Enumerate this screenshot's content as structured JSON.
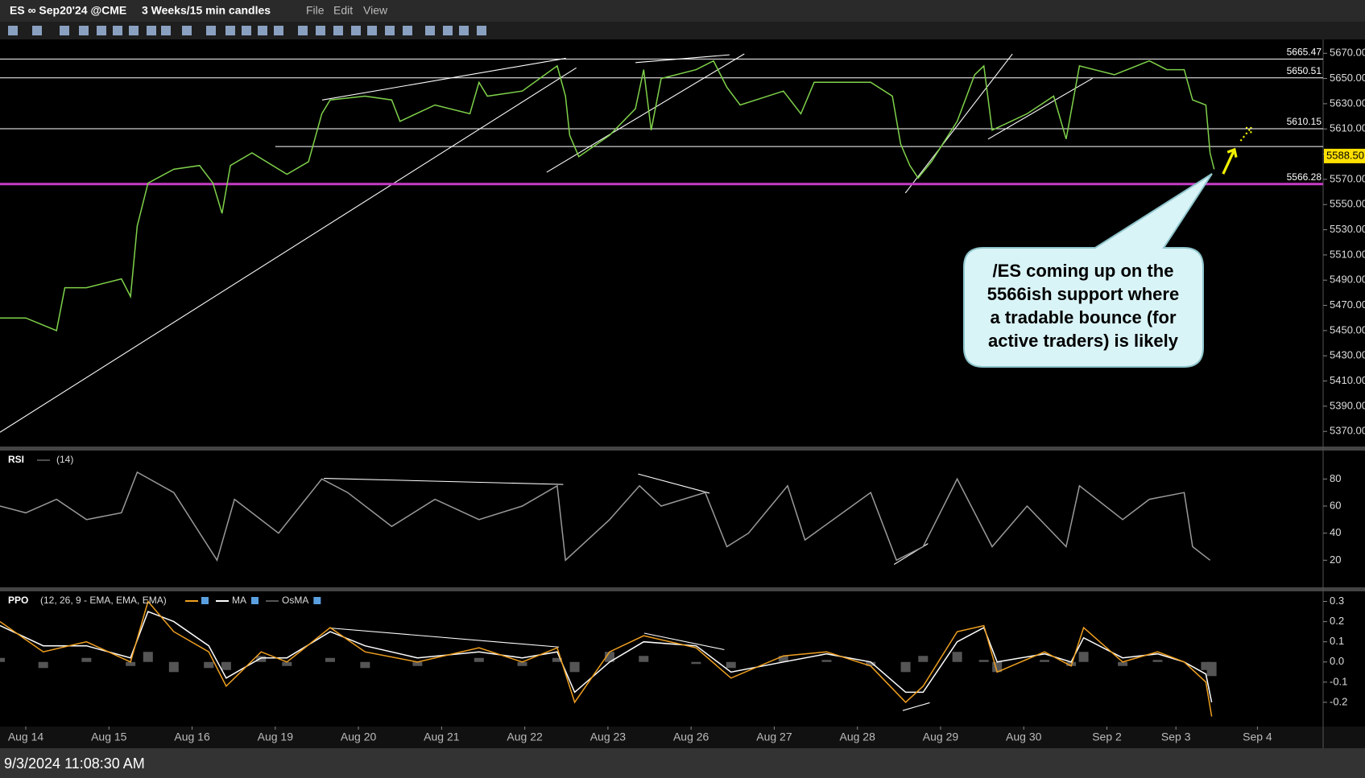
{
  "toolbar": {
    "symbol": "ES ∞ Sep20'24 @CME",
    "period": "3 Weeks/15 min candles",
    "menus": [
      "File",
      "Edit",
      "View"
    ]
  },
  "footer": {
    "timestamp": "9/3/2024 11:08:30 AM"
  },
  "chart_data": [
    {
      "type": "line",
      "color": "#7fd14a",
      "x": [
        -0.31,
        0,
        0.37,
        0.47,
        0.73,
        1.15,
        1.26,
        1.34,
        1.47,
        1.78,
        2.09,
        2.25,
        2.36,
        2.46,
        2.72,
        3.14,
        3.4,
        3.56,
        3.66,
        4.08,
        4.4,
        4.5,
        4.92,
        5.34,
        5.45,
        5.55,
        5.97,
        6.39,
        6.49,
        6.54,
        6.65,
        7.02,
        7.33,
        7.43,
        7.52,
        7.64,
        8.06,
        8.27,
        8.43,
        8.59,
        9.11,
        9.32,
        9.48,
        10.16,
        10.42,
        10.52,
        10.63,
        10.73,
        10.89,
        11.2,
        11.41,
        11.52,
        11.62,
        12.04,
        12.36,
        12.51,
        12.67,
        13.09,
        13.51,
        13.72,
        13.93,
        14.03,
        14.19,
        14.24,
        14.29
      ],
      "values": [
        5460,
        5460,
        5450,
        5484,
        5484,
        5491,
        5477,
        5533,
        5567,
        5578,
        5581,
        5567,
        5543,
        5581,
        5591,
        5574,
        5584,
        5622,
        5633,
        5636,
        5633,
        5616,
        5629,
        5622,
        5647,
        5636,
        5640,
        5660,
        5636,
        5605,
        5588,
        5605,
        5626,
        5657,
        5609,
        5650,
        5657,
        5664,
        5643,
        5629,
        5640,
        5622,
        5647,
        5647,
        5636,
        5598,
        5581,
        5571,
        5584,
        5616,
        5653,
        5660,
        5609,
        5622,
        5636,
        5602,
        5660,
        5653,
        5664,
        5657,
        5657,
        5633,
        5629,
        5591,
        5578
      ],
      "xlim": [
        -0.31,
        15.6
      ],
      "ylim": [
        5358,
        5681
      ],
      "yticks": [
        {
          "value": 5370,
          "label": "5370.00"
        },
        {
          "value": 5390,
          "label": "5390.00"
        },
        {
          "value": 5410,
          "label": "5410.00"
        },
        {
          "value": 5430,
          "label": "5430.00"
        },
        {
          "value": 5450,
          "label": "5450.00"
        },
        {
          "value": 5470,
          "label": "5470.00"
        },
        {
          "value": 5490,
          "label": "5490.00"
        },
        {
          "value": 5510,
          "label": "5510.00"
        },
        {
          "value": 5530,
          "label": "5530.00"
        },
        {
          "value": 5550,
          "label": "5550.00"
        },
        {
          "value": 5570,
          "label": "5570.00"
        },
        {
          "value": 5590,
          "label": "5590.00"
        },
        {
          "value": 5610,
          "label": "5610.00"
        },
        {
          "value": 5630,
          "label": "5630.00"
        },
        {
          "value": 5650,
          "label": "5650.00"
        },
        {
          "value": 5670,
          "label": "5670.00"
        }
      ],
      "levels": [
        5665.47,
        5650.51,
        5610.15,
        5566.28
      ],
      "level_colors": [
        "#ffffff",
        "#ffffff",
        "#ffffff",
        "#c43cc4"
      ],
      "unlabeled_levels": [
        5596
      ],
      "last_price": {
        "value": 5588.5,
        "label": "5588.50"
      },
      "last_price_color": "#ffe000",
      "annotation": [
        "/ES coming up on the",
        "5566ish support where",
        "a tradable bounce (for",
        "active traders) is likely"
      ]
    },
    {
      "type": "line",
      "title": "RSI",
      "subtitle": "(14)",
      "color": "#9a9a9a",
      "x": [
        -0.31,
        0,
        0.37,
        0.73,
        1.15,
        1.34,
        1.78,
        2.3,
        2.51,
        3.04,
        3.56,
        3.87,
        4.4,
        4.92,
        5.45,
        5.97,
        6.39,
        6.49,
        7.02,
        7.38,
        7.64,
        8.17,
        8.43,
        8.69,
        9.16,
        9.37,
        10.16,
        10.47,
        10.79,
        11.2,
        11.62,
        12.04,
        12.51,
        12.67,
        13.19,
        13.51,
        13.93,
        14.03,
        14.24
      ],
      "values": [
        60,
        55,
        65,
        50,
        55,
        85,
        70,
        20,
        65,
        40,
        80,
        70,
        45,
        65,
        50,
        60,
        75,
        20,
        50,
        75,
        60,
        70,
        30,
        40,
        75,
        35,
        70,
        20,
        30,
        80,
        30,
        60,
        30,
        75,
        50,
        65,
        70,
        30,
        20
      ],
      "xlim": [
        -0.31,
        15.6
      ],
      "ylim": [
        0,
        101
      ],
      "yticks": [
        20,
        40,
        60,
        80
      ]
    },
    {
      "type": "line",
      "title": "PPO",
      "subtitle": "(12, 26, 9 - EMA, EMA, EMA)",
      "x": [
        -0.31,
        0.21,
        0.73,
        1.26,
        1.47,
        1.78,
        2.2,
        2.41,
        2.83,
        3.14,
        3.66,
        4.08,
        4.71,
        5.45,
        5.97,
        6.39,
        6.6,
        7.02,
        7.43,
        8.06,
        8.48,
        9.11,
        9.63,
        10.16,
        10.58,
        10.79,
        11.2,
        11.52,
        11.68,
        12.25,
        12.57,
        12.72,
        13.19,
        13.61,
        13.93,
        14.19,
        14.26
      ],
      "series": [
        {
          "name": "OsMA",
          "color": "#555555",
          "style": "histogram",
          "values": [
            0.02,
            -0.03,
            0.02,
            -0.02,
            0.05,
            -0.05,
            -0.03,
            -0.04,
            0.03,
            -0.02,
            0.02,
            -0.03,
            -0.02,
            0.02,
            -0.02,
            0.02,
            -0.05,
            0.05,
            0.03,
            -0.01,
            -0.03,
            0.03,
            0.01,
            -0.02,
            -0.05,
            0.03,
            0.05,
            0.01,
            -0.05,
            0.01,
            -0.02,
            0.05,
            -0.02,
            0.01,
            0,
            -0.04,
            -0.07
          ]
        },
        {
          "name": "MA",
          "color": "#ffffff",
          "values": [
            0.18,
            0.08,
            0.08,
            0.02,
            0.25,
            0.2,
            0.08,
            -0.08,
            0.02,
            0.02,
            0.15,
            0.08,
            0.02,
            0.05,
            0.02,
            0.05,
            -0.15,
            0,
            0.1,
            0.08,
            -0.05,
            0,
            0.04,
            0,
            -0.15,
            -0.15,
            0.1,
            0.17,
            0,
            0.04,
            0,
            0.12,
            0.02,
            0.04,
            0,
            -0.06,
            -0.2
          ]
        },
        {
          "color": "#f0a020",
          "values": [
            0.2,
            0.05,
            0.1,
            0,
            0.3,
            0.15,
            0.05,
            -0.12,
            0.05,
            0,
            0.17,
            0.05,
            0,
            0.07,
            0,
            0.07,
            -0.2,
            0.05,
            0.13,
            0.07,
            -0.08,
            0.03,
            0.05,
            -0.02,
            -0.2,
            -0.12,
            0.15,
            0.18,
            -0.05,
            0.05,
            -0.02,
            0.17,
            0,
            0.05,
            0,
            -0.1,
            -0.27
          ]
        }
      ],
      "xlim": [
        -0.31,
        15.6
      ],
      "ylim": [
        -0.32,
        0.35
      ],
      "yticks": [
        -0.2,
        -0.1,
        {
          "value": 0,
          "label": "0.0"
        },
        0.1,
        0.2,
        0.3
      ],
      "xticks": [
        {
          "value": 0,
          "label": "Aug 14"
        },
        {
          "value": 1,
          "label": "Aug 15"
        },
        {
          "value": 2,
          "label": "Aug 16"
        },
        {
          "value": 3,
          "label": "Aug 19"
        },
        {
          "value": 4,
          "label": "Aug 20"
        },
        {
          "value": 5,
          "label": "Aug 21"
        },
        {
          "value": 6,
          "label": "Aug 22"
        },
        {
          "value": 7,
          "label": "Aug 23"
        },
        {
          "value": 8,
          "label": "Aug 26"
        },
        {
          "value": 9,
          "label": "Aug 27"
        },
        {
          "value": 10,
          "label": "Aug 28"
        },
        {
          "value": 11,
          "label": "Aug 29"
        },
        {
          "value": 12,
          "label": "Aug 30"
        },
        {
          "value": 13,
          "label": "Sep 2"
        },
        {
          "value": 13.83,
          "label": "Sep 3"
        },
        {
          "value": 14.81,
          "label": "Sep 4"
        }
      ]
    }
  ]
}
